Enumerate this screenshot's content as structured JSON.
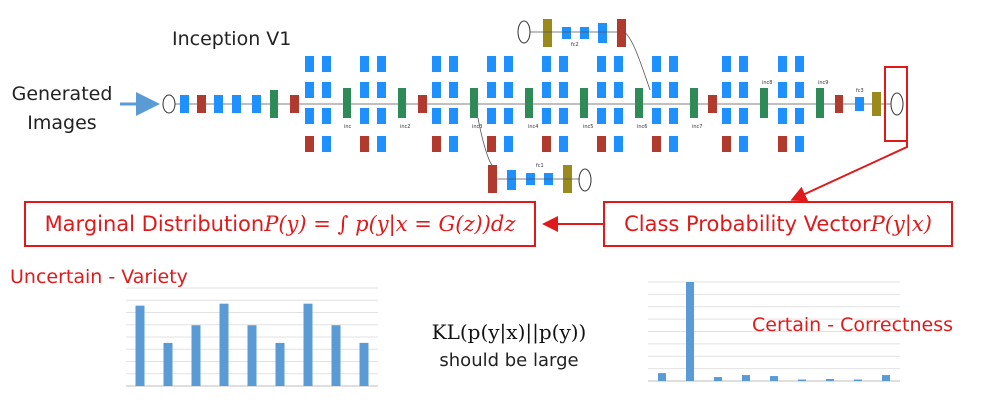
{
  "title": "Inception V1",
  "input_label": "Generated Images",
  "marginal": {
    "text": "Marginal Distribution ",
    "formula": "P(y) = ∫ p(y|x = G(z))dz"
  },
  "class_prob": {
    "text": "Class Probability Vector ",
    "formula": "P(y|x)"
  },
  "uncertain_label": "Uncertain - Variety",
  "certain_label": "Certain - Correctness",
  "kl": {
    "formula": "KL(p(y|x)||p(y))",
    "caption": "should be large"
  },
  "colors": {
    "accent": "#e0191b",
    "bar": "#5b9bd5",
    "conv": "#1e90ff",
    "concat": "#2e8b57",
    "pool": "#b03a2e",
    "fc": "#9a8a1c"
  },
  "network_labels": {
    "inc": [
      "inc",
      "inc2",
      "inc3",
      "inc4",
      "inc5",
      "inc6",
      "inc7",
      "inc8",
      "inc9"
    ],
    "fc": [
      "fc",
      "fc1",
      "fc2",
      "fc3"
    ]
  },
  "chart_data": [
    {
      "type": "bar",
      "values": [
        0.82,
        0.44,
        0.62,
        0.84,
        0.62,
        0.44,
        0.84,
        0.62,
        0.44
      ]
    },
    {
      "type": "bar",
      "values": [
        0.08,
        1.0,
        0.04,
        0.06,
        0.05,
        0.0,
        0.02,
        0.0,
        0.06
      ]
    }
  ]
}
